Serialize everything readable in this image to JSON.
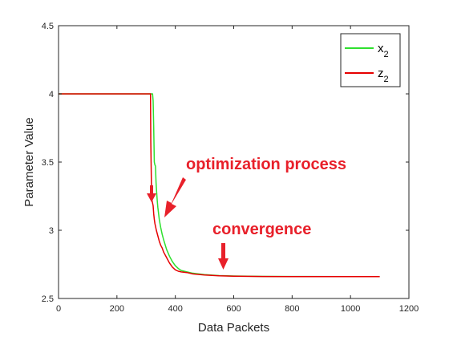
{
  "chart_data": {
    "type": "line",
    "xlabel": "Data Packets",
    "ylabel": "Parameter Value",
    "xlim": [
      0,
      1200
    ],
    "ylim": [
      2.5,
      4.5
    ],
    "xticks": [
      0,
      200,
      400,
      600,
      800,
      1000,
      1200
    ],
    "yticks": [
      2.5,
      3,
      3.5,
      4,
      4.5
    ],
    "xtick_labels": [
      "0",
      "200",
      "400",
      "600",
      "800",
      "1000",
      "1200"
    ],
    "ytick_labels": [
      "2.5",
      "3",
      "3.5",
      "4",
      "4.5"
    ],
    "grid": false,
    "legend": {
      "placement": "top-right",
      "entries": [
        {
          "base": "x",
          "sub": "2",
          "color": "#2ee02e"
        },
        {
          "base": "z",
          "sub": "2",
          "color": "#e60000"
        }
      ]
    },
    "series": [
      {
        "name": "x2",
        "color": "#2ee02e",
        "x": [
          0,
          320,
          322,
          324,
          326,
          328,
          330,
          332,
          334,
          336,
          338,
          340,
          345,
          350,
          355,
          360,
          370,
          380,
          390,
          400,
          410,
          420,
          440,
          460,
          500,
          550,
          600,
          700,
          800,
          1000,
          1100
        ],
        "y": [
          4.0,
          4.0,
          4.0,
          3.95,
          3.75,
          3.5,
          3.48,
          3.47,
          3.35,
          3.28,
          3.22,
          3.17,
          3.08,
          3.02,
          2.97,
          2.93,
          2.86,
          2.81,
          2.77,
          2.74,
          2.72,
          2.705,
          2.695,
          2.685,
          2.675,
          2.668,
          2.665,
          2.662,
          2.661,
          2.66,
          2.66
        ]
      },
      {
        "name": "z2",
        "color": "#e60000",
        "x": [
          0,
          315,
          316,
          318,
          320,
          322,
          324,
          326,
          328,
          330,
          335,
          340,
          345,
          350,
          355,
          360,
          370,
          380,
          390,
          400,
          410,
          420,
          440,
          460,
          500,
          550,
          600,
          700,
          800,
          1000,
          1100
        ],
        "y": [
          4.0,
          4.0,
          3.65,
          3.35,
          3.22,
          3.2,
          3.18,
          3.12,
          3.08,
          3.05,
          3.0,
          2.96,
          2.92,
          2.89,
          2.87,
          2.84,
          2.8,
          2.76,
          2.73,
          2.71,
          2.7,
          2.695,
          2.69,
          2.68,
          2.672,
          2.666,
          2.663,
          2.661,
          2.66,
          2.66,
          2.66
        ]
      }
    ],
    "annotations": [
      {
        "text": "optimization process",
        "color": "#e8202a"
      },
      {
        "text": "convergence",
        "color": "#e8202a"
      }
    ]
  }
}
